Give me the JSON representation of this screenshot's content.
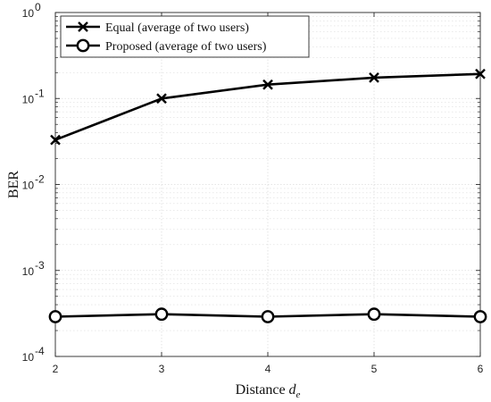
{
  "chart_data": {
    "type": "line",
    "x": [
      2,
      3,
      4,
      5,
      6
    ],
    "xlim": [
      2,
      6
    ],
    "ylim": [
      0.0001,
      1
    ],
    "yscale": "log",
    "grid": true,
    "legend_placement": "top-left",
    "xlabel_text": "Distance ",
    "xlabel_var": "d",
    "xlabel_sub": "e",
    "ylabel": "BER",
    "x_ticks": [
      "2",
      "3",
      "4",
      "5",
      "6"
    ],
    "y_ticks": [
      {
        "base": "10",
        "exp": "0"
      },
      {
        "base": "10",
        "exp": "-1"
      },
      {
        "base": "10",
        "exp": "-2"
      },
      {
        "base": "10",
        "exp": "-3"
      },
      {
        "base": "10",
        "exp": "-4"
      }
    ],
    "series": [
      {
        "name": "Equal (average of two users)",
        "marker": "x",
        "values": [
          0.033,
          0.1,
          0.145,
          0.175,
          0.193
        ]
      },
      {
        "name": "Proposed (average of two users)",
        "marker": "circle",
        "values": [
          0.00029,
          0.00031,
          0.00029,
          0.00031,
          0.00029
        ]
      }
    ],
    "colors": {
      "line": "#000000",
      "grid": "#dddddd",
      "axis": "#262626"
    }
  }
}
